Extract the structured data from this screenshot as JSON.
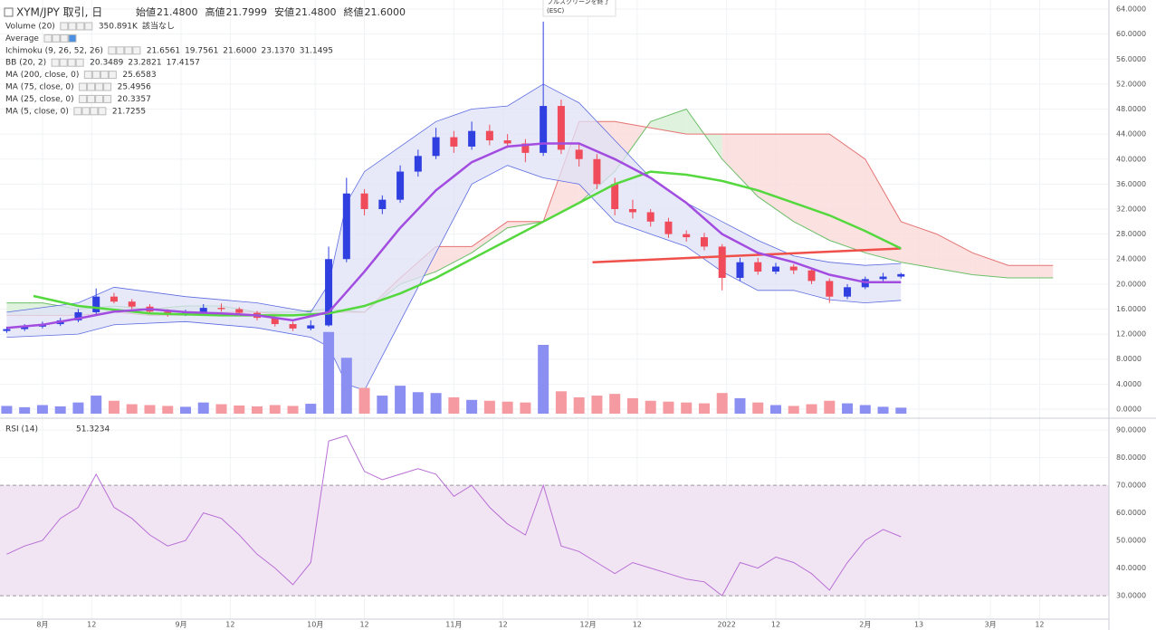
{
  "header": {
    "title": "XYM/JPY 取引, 日",
    "value_color": "#089981",
    "ohlc": [
      {
        "label": "始値",
        "value": "21.4800"
      },
      {
        "label": "高値",
        "value": "21.7999"
      },
      {
        "label": "安値",
        "value": "21.4800"
      },
      {
        "label": "終値",
        "value": "21.6000"
      }
    ]
  },
  "fullscreen_tip": [
    "フルスクリーンを終了",
    "(ESC)"
  ],
  "legend": [
    {
      "name": "Volume (20)",
      "values": [
        "350.891K",
        "該当なし"
      ],
      "colors": [
        "#2962ff",
        "#333333"
      ]
    },
    {
      "name": "Average"
    },
    {
      "name": "Ichimoku (9, 26, 52, 26)",
      "values": [
        "21.6561",
        "19.7561",
        "21.6000",
        "23.1370",
        "31.1495"
      ],
      "colors": [
        "#2962ff",
        "#b71c1c",
        "#43a047",
        "#388e3c",
        "#e53935"
      ]
    },
    {
      "name": "BB (20, 2)",
      "values": [
        "20.3489",
        "23.2821",
        "17.4157"
      ],
      "colors": [
        "#e53935",
        "#2962ff",
        "#2962ff"
      ]
    },
    {
      "name": "MA (200, close, 0)",
      "values": [
        "25.6583"
      ],
      "colors": [
        "#f44336"
      ]
    },
    {
      "name": "MA (75, close, 0)",
      "values": [
        "25.4956"
      ],
      "colors": [
        "#4caf50"
      ]
    },
    {
      "name": "MA (25, close, 0)",
      "values": [
        "20.3357"
      ],
      "colors": [
        "#9c27b0"
      ]
    },
    {
      "name": "MA (5, close, 0)",
      "values": [
        "21.7255"
      ],
      "colors": [
        "#ff9800"
      ]
    }
  ],
  "chart_data": [
    {
      "type": "candlestick",
      "up_color": "#2f3fe0",
      "down_color": "#ef4b5a",
      "xlim": [
        -9.5,
        238.5
      ],
      "ylim": [
        -1.45,
        65.45
      ],
      "grid": true,
      "yticks": [
        {
          "value": 0,
          "label": "0.0000"
        },
        {
          "value": 4,
          "label": "4.0000"
        },
        {
          "value": 8,
          "label": "8.0000"
        },
        {
          "value": 12,
          "label": "12.0000"
        },
        {
          "value": 16,
          "label": "16.0000"
        },
        {
          "value": 20,
          "label": "20.0000"
        },
        {
          "value": 24,
          "label": "24.0000"
        },
        {
          "value": 28,
          "label": "28.0000"
        },
        {
          "value": 32,
          "label": "32.0000"
        },
        {
          "value": 36,
          "label": "36.0000"
        },
        {
          "value": 40,
          "label": "40.0000"
        },
        {
          "value": 44,
          "label": "44.0000"
        },
        {
          "value": 48,
          "label": "48.0000"
        },
        {
          "value": 52,
          "label": "52.0000"
        },
        {
          "value": 56,
          "label": "56.0000"
        },
        {
          "value": 60,
          "label": "60.0000"
        },
        {
          "value": 64,
          "label": "64.0000"
        }
      ],
      "x": [
        -8,
        -4,
        0,
        4,
        8,
        12,
        16,
        20,
        24,
        28,
        32,
        36,
        40,
        44,
        48,
        52,
        56,
        60,
        64,
        68,
        72,
        76,
        80,
        84,
        88,
        92,
        96,
        100,
        104,
        108,
        112,
        116,
        120,
        124,
        128,
        132,
        136,
        140,
        144,
        148,
        152,
        156,
        160,
        164,
        168,
        172,
        176,
        180,
        184,
        188,
        192
      ],
      "ohlc": [
        [
          12.5,
          13.2,
          12.2,
          12.8
        ],
        [
          12.8,
          13.6,
          12.5,
          13.2
        ],
        [
          13.2,
          14.0,
          12.9,
          13.6
        ],
        [
          13.6,
          14.6,
          13.3,
          14.2
        ],
        [
          14.2,
          16.0,
          13.9,
          15.5
        ],
        [
          15.5,
          19.3,
          15.2,
          18.0
        ],
        [
          18.0,
          18.6,
          16.9,
          17.2
        ],
        [
          17.2,
          17.6,
          16.0,
          16.4
        ],
        [
          16.4,
          16.8,
          15.2,
          15.6
        ],
        [
          15.6,
          16.0,
          14.8,
          15.2
        ],
        [
          15.2,
          15.9,
          14.9,
          15.4
        ],
        [
          15.4,
          16.8,
          15.1,
          16.2
        ],
        [
          16.2,
          16.9,
          15.6,
          16.0
        ],
        [
          16.0,
          16.3,
          15.0,
          15.4
        ],
        [
          15.4,
          15.7,
          14.2,
          14.6
        ],
        [
          14.6,
          14.9,
          13.2,
          13.6
        ],
        [
          13.6,
          14.0,
          12.5,
          12.9
        ],
        [
          12.9,
          14.2,
          12.6,
          13.4
        ],
        [
          13.4,
          26.0,
          13.2,
          24.0
        ],
        [
          24.0,
          37.0,
          23.5,
          34.5
        ],
        [
          34.5,
          35.2,
          31.0,
          32.0
        ],
        [
          32.0,
          34.2,
          31.2,
          33.5
        ],
        [
          33.5,
          39.0,
          33.0,
          38.0
        ],
        [
          38.0,
          41.5,
          37.2,
          40.5
        ],
        [
          40.5,
          45.0,
          40.0,
          43.5
        ],
        [
          43.5,
          44.5,
          41.0,
          42.0
        ],
        [
          42.0,
          46.0,
          41.5,
          44.5
        ],
        [
          44.5,
          45.5,
          42.2,
          43.0
        ],
        [
          43.0,
          44.0,
          41.8,
          42.5
        ],
        [
          42.5,
          43.2,
          39.5,
          41.0
        ],
        [
          41.0,
          62.0,
          40.5,
          48.5
        ],
        [
          48.5,
          49.5,
          40.8,
          41.5
        ],
        [
          41.5,
          42.5,
          38.8,
          40.0
        ],
        [
          40.0,
          40.8,
          35.2,
          36.0
        ],
        [
          36.0,
          37.0,
          31.0,
          32.0
        ],
        [
          32.0,
          33.5,
          30.5,
          31.5
        ],
        [
          31.5,
          32.0,
          29.2,
          30.0
        ],
        [
          30.0,
          30.6,
          27.4,
          28.0
        ],
        [
          28.0,
          28.6,
          26.8,
          27.5
        ],
        [
          27.5,
          28.2,
          25.4,
          26.0
        ],
        [
          26.0,
          26.4,
          19.0,
          21.0
        ],
        [
          21.0,
          24.2,
          20.5,
          23.5
        ],
        [
          23.5,
          24.2,
          21.5,
          22.0
        ],
        [
          22.0,
          23.4,
          21.6,
          22.8
        ],
        [
          22.8,
          23.2,
          21.6,
          22.2
        ],
        [
          22.2,
          22.6,
          20.0,
          20.5
        ],
        [
          20.5,
          20.9,
          17.0,
          18.0
        ],
        [
          18.0,
          20.0,
          17.6,
          19.5
        ],
        [
          19.5,
          21.2,
          19.2,
          20.8
        ],
        [
          20.8,
          21.8,
          20.4,
          21.2
        ],
        [
          21.2,
          21.8,
          20.9,
          21.6
        ]
      ],
      "volume": {
        "lim": [
          0,
          2000
        ],
        "up_color": "#8c8ff2",
        "down_color": "#f59aa0",
        "values": [
          180,
          150,
          200,
          170,
          260,
          420,
          300,
          220,
          200,
          180,
          160,
          260,
          220,
          190,
          170,
          200,
          180,
          230,
          1900,
          1300,
          600,
          420,
          650,
          500,
          480,
          380,
          320,
          300,
          280,
          260,
          1600,
          520,
          380,
          420,
          460,
          360,
          300,
          280,
          260,
          240,
          480,
          360,
          260,
          200,
          180,
          220,
          300,
          240,
          200,
          160,
          140
        ]
      },
      "bb": {
        "color": "#5b6be0",
        "fill": "#dfe2f7",
        "x": [
          -8,
          8,
          16,
          32,
          48,
          60,
          64,
          68,
          72,
          80,
          88,
          96,
          104,
          112,
          120,
          128,
          136,
          144,
          152,
          160,
          168,
          176,
          184,
          192
        ],
        "upper": [
          15.5,
          17,
          19.5,
          18,
          17,
          15.5,
          20,
          33,
          38,
          42,
          46,
          48,
          48.5,
          52,
          49,
          43,
          37,
          33,
          30,
          27,
          24.5,
          23.5,
          23,
          23.3
        ],
        "lower": [
          11.5,
          12,
          13.5,
          14,
          13,
          11.5,
          10,
          4,
          3,
          14,
          25,
          36,
          39,
          37,
          36,
          30,
          28,
          26,
          22,
          19,
          19,
          17.5,
          17,
          17.4
        ]
      },
      "ichimoku": {
        "color_a": "#6cbf6a",
        "color_b": "#e57373",
        "fill_a": "#d7efd5",
        "fill_b": "#fbd9d9",
        "x": [
          -8,
          0,
          8,
          16,
          24,
          32,
          40,
          48,
          56,
          64,
          72,
          80,
          88,
          96,
          104,
          112,
          120,
          128,
          136,
          144,
          152,
          160,
          168,
          176,
          184,
          192,
          200,
          208,
          216,
          226
        ],
        "span_a": [
          17,
          17,
          16,
          16.5,
          16,
          16.5,
          16.5,
          15.5,
          15.5,
          16,
          15.5,
          20,
          22,
          25,
          29,
          30,
          33,
          38,
          46,
          48,
          40,
          34,
          30,
          27,
          25,
          23.5,
          22.5,
          21.5,
          21,
          21
        ],
        "span_b": [
          15,
          15,
          15,
          15.5,
          15,
          15,
          15.5,
          15.5,
          15,
          15.5,
          15.5,
          21,
          26,
          26,
          30,
          30,
          46,
          46,
          45,
          44,
          44,
          44,
          44,
          44,
          40,
          30,
          28,
          25,
          23,
          23
        ]
      },
      "ma25": {
        "color": "#a24ce0",
        "x": [
          -8,
          0,
          8,
          16,
          24,
          32,
          40,
          48,
          56,
          64,
          72,
          80,
          88,
          96,
          104,
          112,
          120,
          128,
          136,
          144,
          152,
          160,
          168,
          176,
          184,
          192
        ],
        "values": [
          13,
          13.5,
          14.5,
          15.6,
          16,
          15.5,
          15.3,
          15.0,
          14.2,
          15.5,
          22,
          29,
          35,
          39.5,
          42,
          42.5,
          42.5,
          40,
          37,
          33,
          28,
          25,
          23.5,
          21.5,
          20.3,
          20.3
        ]
      },
      "ma75": {
        "color": "#55d83e",
        "x": [
          -2,
          8,
          24,
          40,
          56,
          64,
          72,
          80,
          88,
          96,
          104,
          112,
          120,
          128,
          136,
          144,
          152,
          160,
          168,
          176,
          184,
          192
        ],
        "values": [
          18.1,
          16.5,
          15.3,
          15.0,
          15.0,
          15.3,
          16.5,
          18.5,
          21,
          24,
          27,
          30,
          33,
          36,
          38,
          37.5,
          36.5,
          35,
          33,
          31,
          28.5,
          25.7
        ]
      },
      "ma200": {
        "color": "#f0504a",
        "x": [
          123,
          192
        ],
        "values": [
          23.5,
          25.7
        ]
      }
    },
    {
      "type": "line",
      "color": "#b86fd4",
      "band": [
        30,
        70
      ],
      "band_color": "#f1e5f4",
      "legend": {
        "name": "RSI (14)",
        "value": "51.3234"
      },
      "xlim": [
        -9.5,
        238.5
      ],
      "ylim": [
        21.5,
        93.3
      ],
      "grid": true,
      "yticks": [
        {
          "value": 30,
          "label": "30.0000"
        },
        {
          "value": 40,
          "label": "40.0000"
        },
        {
          "value": 50,
          "label": "50.0000"
        },
        {
          "value": 60,
          "label": "60.0000"
        },
        {
          "value": 70,
          "label": "70.0000"
        },
        {
          "value": 80,
          "label": "80.0000"
        },
        {
          "value": 90,
          "label": "90.0000"
        }
      ],
      "xticks": [
        {
          "value": 0,
          "label": "8月"
        },
        {
          "value": 11,
          "label": "12"
        },
        {
          "value": 31,
          "label": "9月"
        },
        {
          "value": 42,
          "label": "12"
        },
        {
          "value": 61,
          "label": "10月"
        },
        {
          "value": 72,
          "label": "12"
        },
        {
          "value": 92,
          "label": "11月"
        },
        {
          "value": 103,
          "label": "12"
        },
        {
          "value": 122,
          "label": "12月"
        },
        {
          "value": 133,
          "label": "12"
        },
        {
          "value": 153,
          "label": "2022"
        },
        {
          "value": 164,
          "label": "12"
        },
        {
          "value": 184,
          "label": "2月"
        },
        {
          "value": 196,
          "label": "13"
        },
        {
          "value": 212,
          "label": "3月"
        },
        {
          "value": 223,
          "label": "12"
        }
      ],
      "x": [
        -8,
        -4,
        0,
        4,
        8,
        12,
        16,
        20,
        24,
        28,
        32,
        36,
        40,
        44,
        48,
        52,
        56,
        60,
        64,
        68,
        72,
        76,
        80,
        84,
        88,
        92,
        96,
        100,
        104,
        108,
        112,
        116,
        120,
        124,
        128,
        132,
        136,
        140,
        144,
        148,
        152,
        156,
        160,
        164,
        168,
        172,
        176,
        180,
        184,
        188,
        192
      ],
      "values": [
        45,
        48,
        50,
        58,
        62,
        74,
        62,
        58,
        52,
        48,
        50,
        60,
        58,
        52,
        45,
        40,
        34,
        42,
        86,
        88,
        75,
        72,
        74,
        76,
        74,
        66,
        70,
        62,
        56,
        52,
        70,
        48,
        46,
        42,
        38,
        42,
        40,
        38,
        36,
        35,
        30,
        42,
        40,
        44,
        42,
        38,
        32,
        42,
        50,
        54,
        51.3234
      ]
    }
  ]
}
